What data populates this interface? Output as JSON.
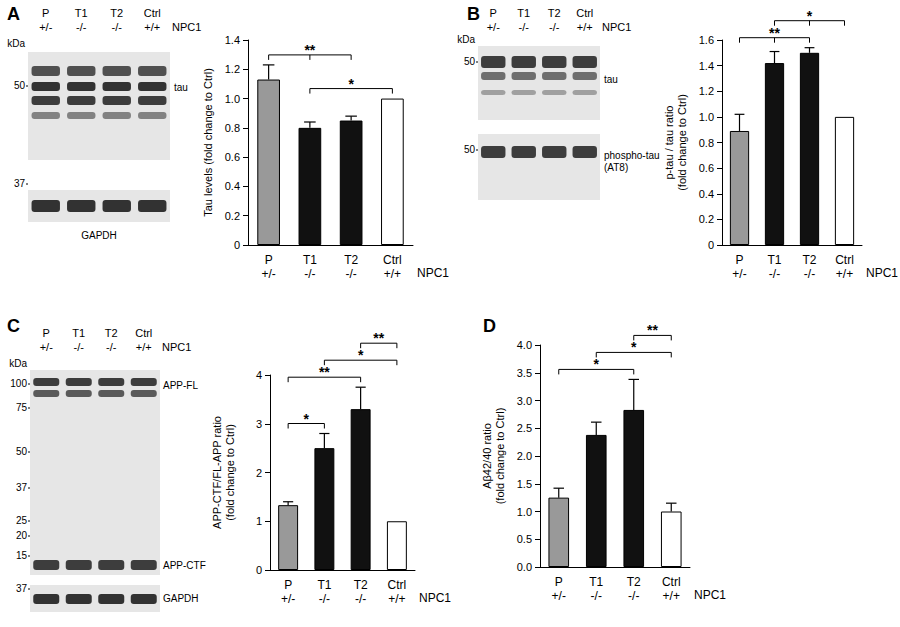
{
  "chart_data": [
    {
      "type": "bar",
      "title": "A",
      "ylabel": "Tau levels (fold change to Ctrl)",
      "categories": [
        "P\n+/-",
        "T1\n-/-",
        "T2\n-/-",
        "Ctrl\n+/+"
      ],
      "values": [
        1.13,
        0.8,
        0.85,
        1
      ],
      "errors": [
        0.1,
        0.04,
        0.03,
        0
      ],
      "colors": [
        "#999999",
        "#111111",
        "#111111",
        "#ffffff"
      ],
      "ylim": [
        0,
        1.4
      ],
      "yticks": [
        0,
        0.2,
        0.4,
        0.6,
        0.8,
        {
          "value": 1,
          "label": "1.0"
        },
        1.2,
        1.4
      ],
      "grid": false,
      "annotation": "NPC1",
      "significance": [
        {
          "from": 0,
          "to": [
            1,
            2
          ],
          "label": "**"
        },
        {
          "from": 1,
          "to": [
            3
          ],
          "label": "*"
        }
      ]
    },
    {
      "type": "bar",
      "title": "B",
      "ylabel": "p-tau / tau ratio\n(fold change to Ctrl)",
      "categories": [
        "P\n+/-",
        "T1\n-/-",
        "T2\n-/-",
        "Ctrl\n+/+"
      ],
      "values": [
        0.89,
        1.42,
        1.5,
        1
      ],
      "errors": [
        0.13,
        0.09,
        0.04,
        0
      ],
      "colors": [
        "#999999",
        "#111111",
        "#111111",
        "#ffffff"
      ],
      "ylim": [
        0,
        1.6
      ],
      "yticks": [
        0,
        0.2,
        0.4,
        0.6,
        0.8,
        {
          "value": 1,
          "label": "1.0"
        },
        1.2,
        1.4,
        1.6
      ],
      "grid": false,
      "annotation": "NPC1",
      "significance": [
        {
          "from": 0,
          "to": [
            1,
            2
          ],
          "label": "**"
        },
        {
          "from": 3,
          "to": [
            1,
            2
          ],
          "label": "*"
        }
      ]
    },
    {
      "type": "bar",
      "title": "C",
      "ylabel": "APP-CTF/FL-APP ratio\n(fold change to Ctrl)",
      "categories": [
        "P\n+/-",
        "T1\n-/-",
        "T2\n-/-",
        "Ctrl\n+/+"
      ],
      "values": [
        1.33,
        2.5,
        3.3,
        1
      ],
      "errors": [
        0.07,
        0.3,
        0.45,
        0
      ],
      "colors": [
        "#999999",
        "#111111",
        "#111111",
        "#ffffff"
      ],
      "ylim": [
        0,
        4
      ],
      "yticks": [
        0,
        1,
        2,
        3,
        4
      ],
      "grid": false,
      "annotation": "NPC1",
      "significance": [
        {
          "from": 0,
          "to": [
            1
          ],
          "label": "*"
        },
        {
          "from": 0,
          "to": [
            2
          ],
          "label": "**"
        },
        {
          "from": 1,
          "to": [
            3
          ],
          "label": "*"
        },
        {
          "from": 2,
          "to": [
            3
          ],
          "label": "**"
        }
      ]
    },
    {
      "type": "bar",
      "title": "D",
      "ylabel": "Aβ42/40 ratio\n(fold change to Ctrl)",
      "categories": [
        "P\n+/-",
        "T1\n-/-",
        "T2\n-/-",
        "Ctrl\n+/+"
      ],
      "values": [
        1.25,
        2.38,
        2.83,
        1
      ],
      "errors": [
        0.17,
        0.23,
        0.55,
        0.15
      ],
      "colors": [
        "#999999",
        "#111111",
        "#111111",
        "#ffffff"
      ],
      "ylim": [
        0,
        4
      ],
      "yticks": [
        {
          "value": 0,
          "label": "0.0"
        },
        0.5,
        {
          "value": 1,
          "label": "1.0"
        },
        1.5,
        {
          "value": 2,
          "label": "2.0"
        },
        2.5,
        {
          "value": 3,
          "label": "3.0"
        },
        3.5,
        {
          "value": 4,
          "label": "4.0"
        }
      ],
      "grid": false,
      "annotation": "NPC1",
      "significance": [
        {
          "from": 0,
          "to": [
            2
          ],
          "label": "*"
        },
        {
          "from": 1,
          "to": [
            3
          ],
          "label": "*"
        },
        {
          "from": 2,
          "to": [
            3
          ],
          "label": "**"
        }
      ]
    }
  ],
  "blots": [
    {
      "panel": "A",
      "lanes": [
        "P",
        "T1",
        "T2",
        "Ctrl"
      ],
      "genotypes": [
        "+/-",
        "-/-",
        "-/-",
        "+/+"
      ],
      "gene": "NPC1",
      "unit": "kDa",
      "strips": [
        {
          "markers": [
            50
          ],
          "labels": [
            "tau"
          ]
        },
        {
          "markers": [
            37
          ],
          "labels": [
            "GAPDH"
          ]
        }
      ]
    },
    {
      "panel": "B",
      "lanes": [
        "P",
        "T1",
        "T2",
        "Ctrl"
      ],
      "genotypes": [
        "+/-",
        "-/-",
        "-/-",
        "+/+"
      ],
      "gene": "NPC1",
      "unit": "kDa",
      "strips": [
        {
          "markers": [
            50
          ],
          "labels": [
            "tau"
          ]
        },
        {
          "markers": [
            50
          ],
          "labels": [
            "phospho-tau\n(AT8)"
          ]
        }
      ]
    },
    {
      "panel": "C",
      "lanes": [
        "P",
        "T1",
        "T2",
        "Ctrl"
      ],
      "genotypes": [
        "+/-",
        "-/-",
        "-/-",
        "+/+"
      ],
      "gene": "NPC1",
      "unit": "kDa",
      "strips": [
        {
          "markers": [
            100,
            75,
            50,
            37,
            25,
            20,
            15
          ],
          "labels": [
            "APP-FL",
            "APP-CTF"
          ]
        },
        {
          "markers": [
            37
          ],
          "labels": [
            "GAPDH"
          ]
        }
      ]
    }
  ]
}
